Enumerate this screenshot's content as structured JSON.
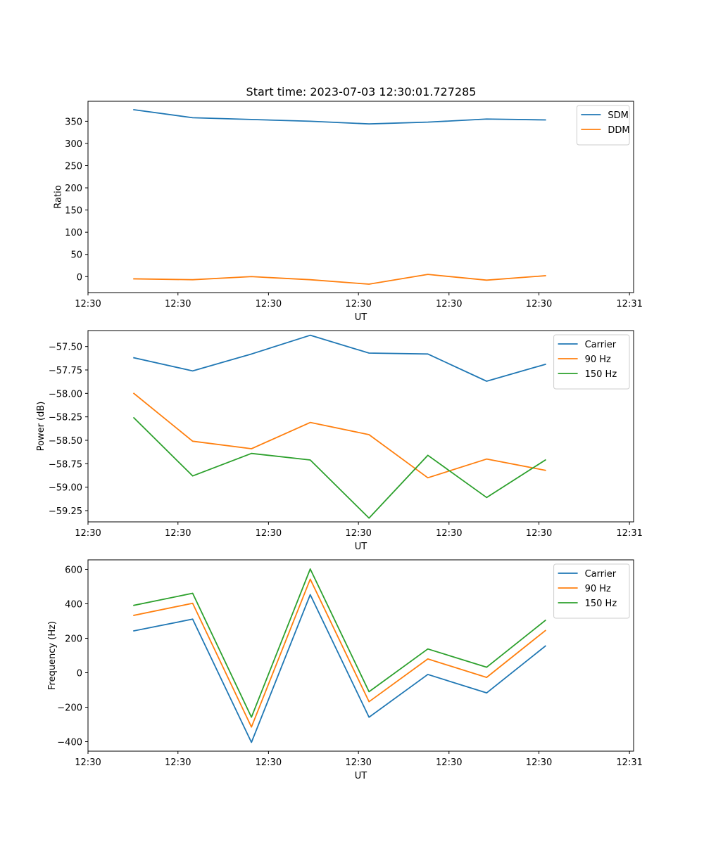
{
  "figure_title": "Start time: 2023-07-03 12:30:01.727285",
  "chart_data": [
    {
      "type": "line",
      "title": "Start time: 2023-07-03 12:30:01.727285",
      "xlabel": "UT",
      "ylabel": "Ratio",
      "x": [
        0,
        1,
        2,
        3,
        4,
        5,
        6,
        7
      ],
      "xlim": [
        -0.78,
        8.5
      ],
      "x_ticks": [
        -0.78,
        0.75,
        2.29,
        3.82,
        5.36,
        6.89,
        8.43
      ],
      "x_tick_labels": [
        "12:30",
        "12:30",
        "12:30",
        "12:30",
        "12:30",
        "12:30",
        "12:31"
      ],
      "ylim": [
        -36,
        395
      ],
      "y_ticks": [
        0,
        50,
        100,
        150,
        200,
        250,
        300,
        350
      ],
      "y_tick_labels": [
        "0",
        "50",
        "100",
        "150",
        "200",
        "250",
        "300",
        "350"
      ],
      "legend": "top-right",
      "series": [
        {
          "name": "SDM",
          "color": "#1f77b4",
          "values": [
            376,
            358,
            354,
            350,
            344,
            348,
            355,
            353
          ]
        },
        {
          "name": "DDM",
          "color": "#ff7f0e",
          "values": [
            -5,
            -7,
            0,
            -7,
            -17,
            5,
            -8,
            2
          ]
        }
      ]
    },
    {
      "type": "line",
      "title": "",
      "xlabel": "UT",
      "ylabel": "Power (dB)",
      "x": [
        0,
        1,
        2,
        3,
        4,
        5,
        6,
        7
      ],
      "xlim": [
        -0.78,
        8.5
      ],
      "x_ticks": [
        -0.78,
        0.75,
        2.29,
        3.82,
        5.36,
        6.89,
        8.43
      ],
      "x_tick_labels": [
        "12:30",
        "12:30",
        "12:30",
        "12:30",
        "12:30",
        "12:30",
        "12:31"
      ],
      "ylim": [
        -59.37,
        -57.33
      ],
      "y_ticks": [
        -59.25,
        -59.0,
        -58.75,
        -58.5,
        -58.25,
        -58.0,
        -57.75,
        -57.5
      ],
      "y_tick_labels": [
        "−59.25",
        "−59.00",
        "−58.75",
        "−58.50",
        "−58.25",
        "−58.00",
        "−57.75",
        "−57.50"
      ],
      "legend": "top-right",
      "series": [
        {
          "name": "Carrier",
          "color": "#1f77b4",
          "values": [
            -57.62,
            -57.76,
            -57.58,
            -57.38,
            -57.57,
            -57.58,
            -57.87,
            -57.69
          ]
        },
        {
          "name": "90 Hz",
          "color": "#ff7f0e",
          "values": [
            -58.0,
            -58.51,
            -58.59,
            -58.31,
            -58.44,
            -58.9,
            -58.7,
            -58.82
          ]
        },
        {
          "name": "150 Hz",
          "color": "#2ca02c",
          "values": [
            -58.26,
            -58.88,
            -58.64,
            -58.71,
            -59.33,
            -58.66,
            -59.11,
            -58.71
          ]
        }
      ]
    },
    {
      "type": "line",
      "title": "",
      "xlabel": "UT",
      "ylabel": "Frequency (Hz)",
      "x": [
        0,
        1,
        2,
        3,
        4,
        5,
        6,
        7
      ],
      "xlim": [
        -0.78,
        8.5
      ],
      "x_ticks": [
        -0.78,
        0.75,
        2.29,
        3.82,
        5.36,
        6.89,
        8.43
      ],
      "x_tick_labels": [
        "12:30",
        "12:30",
        "12:30",
        "12:30",
        "12:30",
        "12:30",
        "12:31"
      ],
      "ylim": [
        -455,
        655
      ],
      "y_ticks": [
        -400,
        -200,
        0,
        200,
        400,
        600
      ],
      "y_tick_labels": [
        "−400",
        "−200",
        "0",
        "200",
        "400",
        "600"
      ],
      "legend": "top-right",
      "series": [
        {
          "name": "Carrier",
          "color": "#1f77b4",
          "values": [
            243,
            311,
            -404,
            453,
            -258,
            -10,
            -117,
            155
          ]
        },
        {
          "name": "90 Hz",
          "color": "#ff7f0e",
          "values": [
            333,
            403,
            -315,
            543,
            -168,
            80,
            -27,
            245
          ]
        },
        {
          "name": "150 Hz",
          "color": "#2ca02c",
          "values": [
            391,
            461,
            -258,
            602,
            -110,
            138,
            32,
            304
          ]
        }
      ]
    }
  ]
}
